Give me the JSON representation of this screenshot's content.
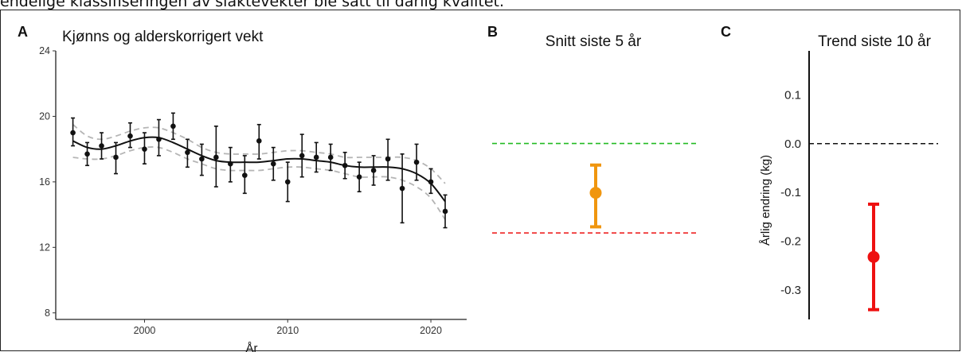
{
  "caption": "endelige klassifiseringen av slaktevekter ble satt til dårlig kvalitet.",
  "colors": {
    "points": "#111111",
    "smooth": "#111111",
    "ci_band": "#b5b5b5",
    "good_threshold": "#22bb22",
    "poor_threshold": "#ee2222",
    "mean_point": "#f0960f",
    "trend_point": "#ee1111",
    "zero_line": "#111111"
  },
  "chart_data": [
    {
      "panel": "A",
      "type": "line",
      "title": "Kjønns og alderskorrigert vekt",
      "xlabel": "År",
      "ylabel": "",
      "xlim": [
        1993.8,
        2022.5
      ],
      "ylim": [
        7.6,
        24
      ],
      "xticks": [
        2000,
        2010,
        2020
      ],
      "yticks": [
        8,
        12,
        16,
        20,
        24
      ],
      "grid": false,
      "points": [
        {
          "x": 1995,
          "y": 19.0,
          "lo": 18.2,
          "hi": 19.9
        },
        {
          "x": 1996,
          "y": 17.7,
          "lo": 17.0,
          "hi": 18.4
        },
        {
          "x": 1997,
          "y": 18.2,
          "lo": 17.4,
          "hi": 19.0
        },
        {
          "x": 1998,
          "y": 17.5,
          "lo": 16.5,
          "hi": 18.4
        },
        {
          "x": 1999,
          "y": 18.8,
          "lo": 18.1,
          "hi": 19.6
        },
        {
          "x": 2000,
          "y": 18.0,
          "lo": 17.1,
          "hi": 19.0
        },
        {
          "x": 2001,
          "y": 18.6,
          "lo": 17.6,
          "hi": 19.8
        },
        {
          "x": 2002,
          "y": 19.4,
          "lo": 18.6,
          "hi": 20.2
        },
        {
          "x": 2003,
          "y": 17.8,
          "lo": 16.9,
          "hi": 18.6
        },
        {
          "x": 2004,
          "y": 17.4,
          "lo": 16.4,
          "hi": 18.3
        },
        {
          "x": 2005,
          "y": 17.5,
          "lo": 15.7,
          "hi": 19.4
        },
        {
          "x": 2006,
          "y": 17.1,
          "lo": 16.0,
          "hi": 18.1
        },
        {
          "x": 2007,
          "y": 16.4,
          "lo": 15.3,
          "hi": 17.6
        },
        {
          "x": 2008,
          "y": 18.5,
          "lo": 17.4,
          "hi": 19.5
        },
        {
          "x": 2009,
          "y": 17.1,
          "lo": 16.1,
          "hi": 18.1
        },
        {
          "x": 2010,
          "y": 16.0,
          "lo": 14.8,
          "hi": 17.2
        },
        {
          "x": 2011,
          "y": 17.6,
          "lo": 16.3,
          "hi": 18.9
        },
        {
          "x": 2012,
          "y": 17.5,
          "lo": 16.6,
          "hi": 18.4
        },
        {
          "x": 2013,
          "y": 17.5,
          "lo": 16.7,
          "hi": 18.3
        },
        {
          "x": 2014,
          "y": 17.0,
          "lo": 16.2,
          "hi": 17.8
        },
        {
          "x": 2015,
          "y": 16.3,
          "lo": 15.4,
          "hi": 17.2
        },
        {
          "x": 2016,
          "y": 16.7,
          "lo": 15.8,
          "hi": 17.6
        },
        {
          "x": 2017,
          "y": 17.4,
          "lo": 16.1,
          "hi": 18.6
        },
        {
          "x": 2018,
          "y": 15.6,
          "lo": 13.5,
          "hi": 17.7
        },
        {
          "x": 2019,
          "y": 17.2,
          "lo": 16.1,
          "hi": 18.3
        },
        {
          "x": 2020,
          "y": 16.0,
          "lo": 15.3,
          "hi": 16.8
        },
        {
          "x": 2021,
          "y": 14.2,
          "lo": 13.2,
          "hi": 15.2
        }
      ],
      "smooth": {
        "x": [
          1995,
          1996,
          1997,
          1998,
          1999,
          2000,
          2001,
          2002,
          2003,
          2004,
          2005,
          2006,
          2007,
          2008,
          2009,
          2010,
          2011,
          2012,
          2013,
          2014,
          2015,
          2016,
          2017,
          2018,
          2019,
          2020,
          2021
        ],
        "y": [
          18.5,
          18.1,
          18.0,
          18.2,
          18.5,
          18.7,
          18.7,
          18.4,
          18.0,
          17.6,
          17.3,
          17.2,
          17.2,
          17.2,
          17.3,
          17.4,
          17.4,
          17.3,
          17.2,
          17.0,
          16.9,
          16.9,
          16.9,
          16.8,
          16.5,
          15.9,
          14.8
        ],
        "lo": [
          17.5,
          17.4,
          17.4,
          17.6,
          17.9,
          18.1,
          18.1,
          17.8,
          17.4,
          17.1,
          16.8,
          16.7,
          16.7,
          16.7,
          16.8,
          16.9,
          16.9,
          16.8,
          16.7,
          16.5,
          16.3,
          16.3,
          16.3,
          16.1,
          15.7,
          15.0,
          13.7
        ],
        "hi": [
          19.5,
          18.8,
          18.6,
          18.8,
          19.1,
          19.3,
          19.3,
          19.0,
          18.6,
          18.1,
          17.8,
          17.7,
          17.7,
          17.7,
          17.8,
          17.9,
          17.9,
          17.8,
          17.7,
          17.5,
          17.5,
          17.5,
          17.5,
          17.5,
          17.3,
          16.8,
          15.9
        ]
      }
    },
    {
      "panel": "B",
      "type": "scatter",
      "title": "Snitt siste 5 år",
      "xlabel": "",
      "ylabel": "",
      "ylim": [
        12.2,
        20.9
      ],
      "good_threshold": 17.9,
      "poor_threshold": 15.0,
      "mean": 16.3,
      "lo": 15.2,
      "hi": 17.2
    },
    {
      "panel": "C",
      "type": "scatter",
      "title": "Trend siste 10 år",
      "xlabel": "",
      "ylabel": "Årlig endring (kg)",
      "ylim": [
        -0.36,
        0.19
      ],
      "yticks": [
        0.1,
        0.0,
        -0.1,
        -0.2,
        -0.3
      ],
      "ytick_labels": [
        "0.1",
        "0.0",
        "-0.1",
        "-0.2",
        "-0.3"
      ],
      "zero_line": 0,
      "estimate": -0.232,
      "lo": -0.34,
      "hi": -0.124
    }
  ]
}
